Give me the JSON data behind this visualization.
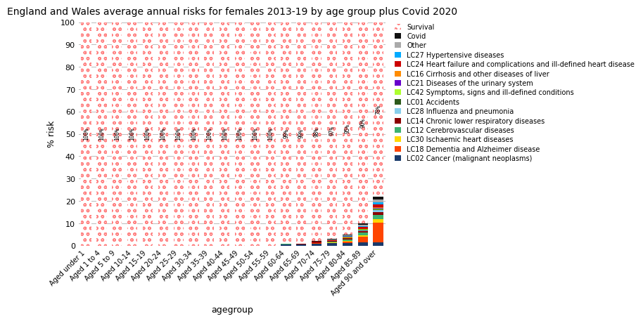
{
  "title": "England and Wales average annual risks for females 2013-19 by age group plus Covid 2020",
  "xlabel": "agegroup",
  "ylabel": "% risk",
  "age_groups": [
    "Aged under 1",
    "Aged 1 to 4",
    "Aged 5 to 9",
    "Aged 10-14",
    "Aged 15-19",
    "Aged 20-24",
    "Aged 25-29",
    "Aged 30-34",
    "Aged 35-39",
    "Aged 40-44",
    "Aged 45-49",
    "Aged 50-54",
    "Aged 55-59",
    "Aged 60-64",
    "Aged 65-69",
    "Aged 70-74",
    "Aged 75-79",
    "Aged 80-84",
    "Aged 85-89",
    "Aged 90 and over"
  ],
  "survival_pct": [
    100,
    100,
    100,
    100,
    100,
    100,
    100,
    100,
    100,
    100,
    100,
    100,
    100,
    99,
    99,
    98,
    97,
    95,
    90,
    78
  ],
  "legend_order": [
    "Survival",
    "Covid",
    "Other",
    "LC27 Hypertensive diseases",
    "LC24 Heart failure and complications and ill-defined heart disease",
    "LC16 Cirrhosis and other diseases of liver",
    "LC21 Diseases of the urinary system",
    "LC42 Symptoms, signs and ill-defined conditions",
    "LC01 Accidents",
    "LC28 Influenza and pneumonia",
    "LC14 Chronic lower respiratory diseases",
    "LC12 Cerebrovascular diseases",
    "LC30 Ischaemic heart diseases",
    "LC18 Dementia and Alzheimer disease",
    "LC02 Cancer (malignant neoplasms)"
  ],
  "stack_order": [
    "LC02 Cancer (malignant neoplasms)",
    "LC18 Dementia and Alzheimer disease",
    "LC30 Ischaemic heart diseases",
    "LC12 Cerebrovascular diseases",
    "LC14 Chronic lower respiratory diseases",
    "LC28 Influenza and pneumonia",
    "LC01 Accidents",
    "LC42 Symptoms, signs and ill-defined conditions",
    "LC21 Diseases of the urinary system",
    "LC16 Cirrhosis and other diseases of liver",
    "LC24 Heart failure and complications and ill-defined heart disease",
    "LC27 Hypertensive diseases",
    "Other",
    "Covid"
  ],
  "colors": {
    "LC02 Cancer (malignant neoplasms)": "#1a3a6b",
    "LC18 Dementia and Alzheimer disease": "#ff4500",
    "LC30 Ischaemic heart diseases": "#ffd700",
    "LC12 Cerebrovascular diseases": "#3cb371",
    "LC14 Chronic lower respiratory diseases": "#8b0000",
    "LC28 Influenza and pneumonia": "#87ceeb",
    "LC01 Accidents": "#2d5a1b",
    "LC42 Symptoms, signs and ill-defined conditions": "#adff2f",
    "LC21 Diseases of the urinary system": "#6600cc",
    "LC16 Cirrhosis and other diseases of liver": "#ff8c00",
    "LC24 Heart failure and complications and ill-defined heart disease": "#cc0000",
    "LC27 Hypertensive diseases": "#00aaff",
    "Other": "#aaaaaa",
    "Covid": "#111111",
    "Survival": "#ff8080"
  },
  "raw_data": {
    "LC02 Cancer (malignant neoplasms)": [
      0.01,
      0.005,
      0.003,
      0.003,
      0.01,
      0.02,
      0.04,
      0.08,
      0.15,
      0.25,
      0.4,
      0.55,
      0.65,
      0.75,
      0.8,
      0.8,
      0.8,
      0.75,
      0.7,
      0.6
    ],
    "LC18 Dementia and Alzheimer disease": [
      0.0,
      0.0,
      0.0,
      0.0,
      0.0,
      0.0,
      0.0,
      0.0,
      0.0,
      0.0,
      0.0,
      0.0,
      0.0,
      0.0,
      0.0,
      0.01,
      0.05,
      0.3,
      1.2,
      3.5
    ],
    "LC30 Ischaemic heart diseases": [
      0.0,
      0.0,
      0.0,
      0.0,
      0.0,
      0.0,
      0.0,
      0.0,
      0.0,
      0.0,
      0.01,
      0.02,
      0.04,
      0.05,
      0.08,
      0.1,
      0.15,
      0.25,
      0.4,
      0.6
    ],
    "LC12 Cerebrovascular diseases": [
      0.0,
      0.0,
      0.0,
      0.0,
      0.0,
      0.0,
      0.0,
      0.0,
      0.0,
      0.01,
      0.02,
      0.03,
      0.05,
      0.07,
      0.1,
      0.12,
      0.2,
      0.35,
      0.55,
      0.8
    ],
    "LC14 Chronic lower respiratory diseases": [
      0.0,
      0.0,
      0.0,
      0.0,
      0.0,
      0.0,
      0.0,
      0.0,
      0.0,
      0.0,
      0.01,
      0.02,
      0.04,
      0.06,
      0.09,
      0.12,
      0.15,
      0.25,
      0.35,
      0.45
    ],
    "LC28 Influenza and pneumonia": [
      0.0,
      0.0,
      0.0,
      0.0,
      0.0,
      0.0,
      0.0,
      0.0,
      0.0,
      0.0,
      0.0,
      0.0,
      0.01,
      0.01,
      0.02,
      0.03,
      0.05,
      0.1,
      0.2,
      0.35
    ],
    "LC01 Accidents": [
      0.005,
      0.003,
      0.002,
      0.002,
      0.003,
      0.004,
      0.004,
      0.004,
      0.004,
      0.004,
      0.004,
      0.005,
      0.005,
      0.006,
      0.007,
      0.01,
      0.02,
      0.04,
      0.07,
      0.1
    ],
    "LC42 Symptoms, signs and ill-defined conditions": [
      0.0,
      0.0,
      0.0,
      0.0,
      0.0,
      0.0,
      0.0,
      0.0,
      0.0,
      0.0,
      0.0,
      0.0,
      0.0,
      0.01,
      0.01,
      0.02,
      0.04,
      0.07,
      0.12,
      0.2
    ],
    "LC21 Diseases of the urinary system": [
      0.0,
      0.0,
      0.0,
      0.0,
      0.0,
      0.0,
      0.0,
      0.0,
      0.0,
      0.0,
      0.0,
      0.0,
      0.0,
      0.0,
      0.01,
      0.01,
      0.02,
      0.04,
      0.08,
      0.15
    ],
    "LC16 Cirrhosis and other diseases of liver": [
      0.0,
      0.0,
      0.0,
      0.0,
      0.0,
      0.0,
      0.01,
      0.01,
      0.02,
      0.03,
      0.04,
      0.04,
      0.04,
      0.03,
      0.03,
      0.02,
      0.02,
      0.02,
      0.02,
      0.02
    ],
    "LC24 Heart failure and complications and ill-defined heart disease": [
      0.0,
      0.0,
      0.0,
      0.0,
      0.0,
      0.0,
      0.0,
      0.0,
      0.0,
      0.0,
      0.01,
      0.01,
      0.02,
      0.03,
      0.05,
      0.07,
      0.12,
      0.2,
      0.35,
      0.55
    ],
    "LC27 Hypertensive diseases": [
      0.0,
      0.0,
      0.0,
      0.0,
      0.0,
      0.0,
      0.0,
      0.0,
      0.0,
      0.0,
      0.0,
      0.01,
      0.01,
      0.02,
      0.03,
      0.04,
      0.07,
      0.12,
      0.2,
      0.35
    ],
    "Other": [
      0.1,
      0.05,
      0.03,
      0.03,
      0.05,
      0.05,
      0.05,
      0.05,
      0.06,
      0.07,
      0.08,
      0.1,
      0.12,
      0.14,
      0.16,
      0.18,
      0.22,
      0.28,
      0.4,
      0.55
    ],
    "Covid": [
      0.0,
      0.0,
      0.0,
      0.0,
      0.0,
      0.0,
      0.0,
      0.0,
      0.0,
      0.0,
      0.0,
      0.0,
      0.01,
      0.01,
      0.02,
      0.03,
      0.06,
      0.12,
      0.25,
      0.5
    ]
  },
  "background_color": "#ffffff",
  "grid_color": "#bbbbbb",
  "survival_dot_color": "#ff8080",
  "ylim": [
    0,
    100
  ],
  "yticks": [
    0,
    10,
    20,
    30,
    40,
    50,
    60,
    70,
    80,
    90,
    100
  ],
  "bar_width": 0.65
}
